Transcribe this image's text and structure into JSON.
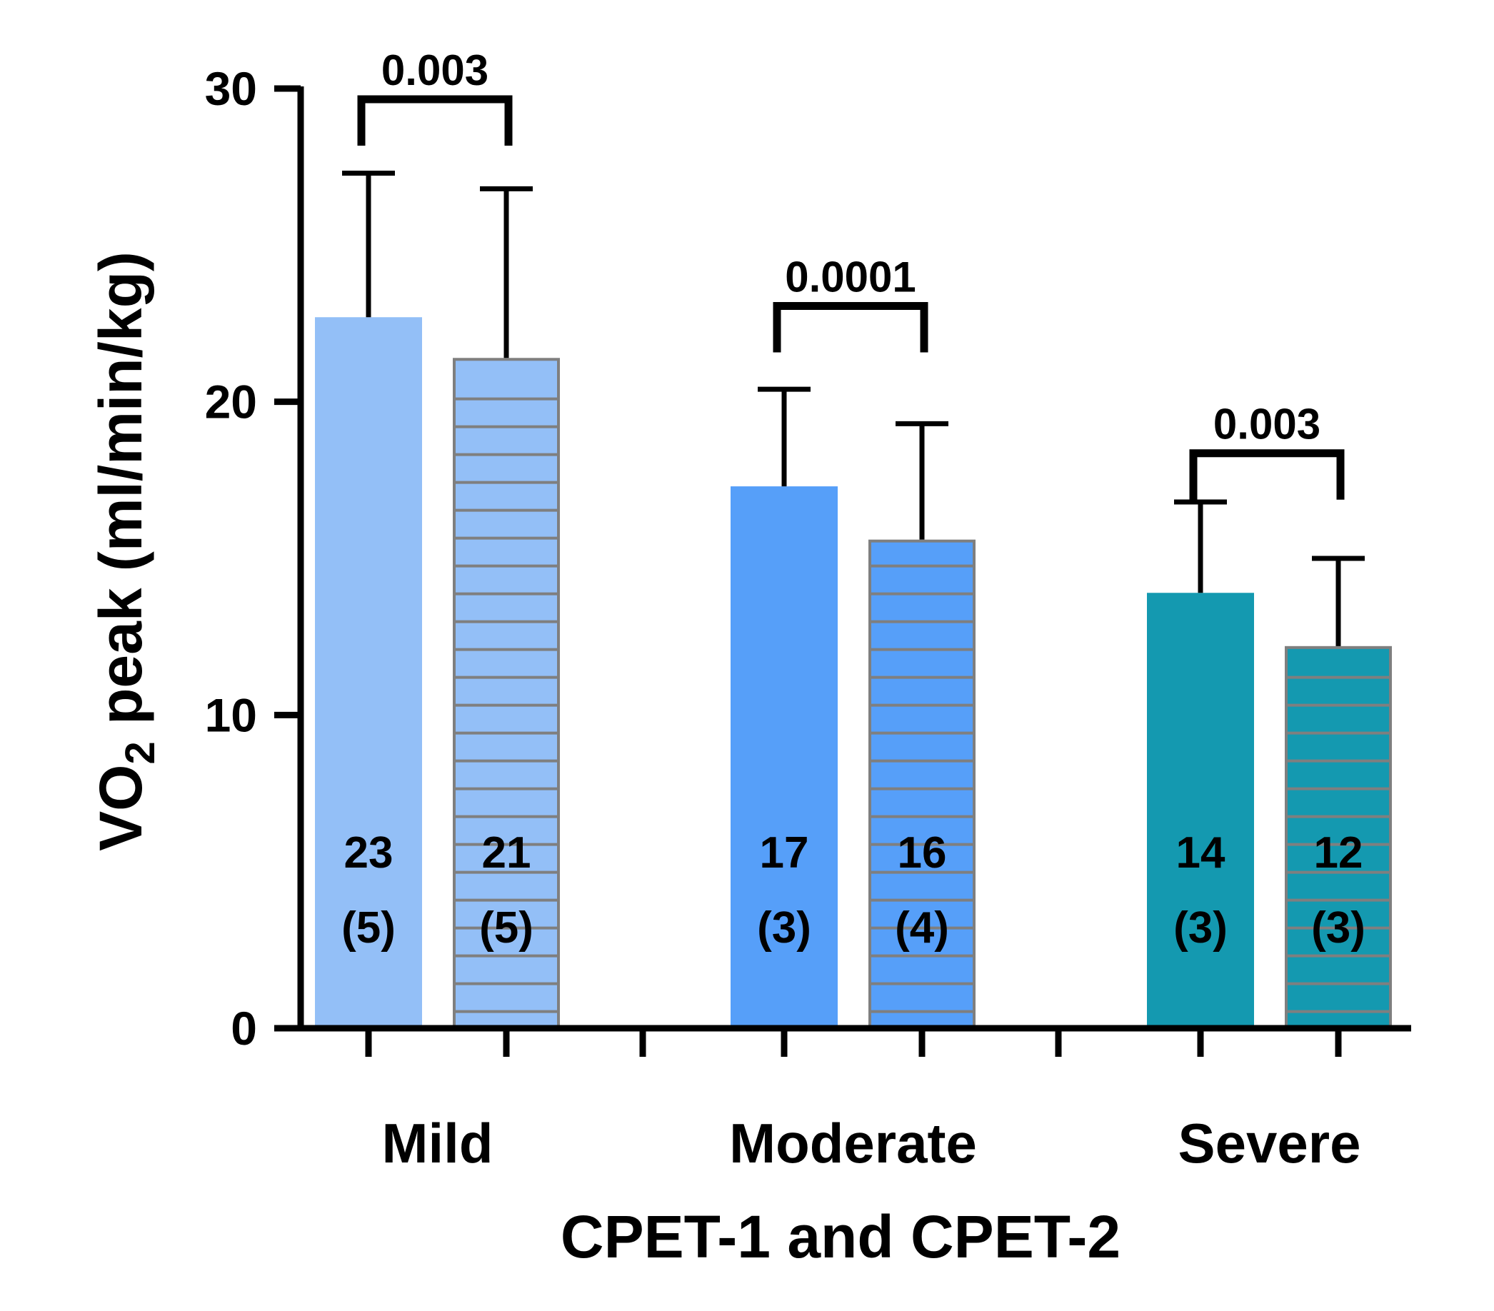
{
  "chart_data": {
    "type": "bar",
    "xlabel": "CPET-1 and CPET-2",
    "ylabel": {
      "main": "VO",
      "sub": "2",
      "rest": " peak (ml/min/kg)"
    },
    "ylim": [
      0,
      30
    ],
    "yticks": [
      "0",
      "10",
      "20",
      "30"
    ],
    "categories": [
      "Mild",
      "Moderate",
      "Severe"
    ],
    "series": [
      {
        "name": "CPET-1",
        "pattern": "solid",
        "values": [
          22.7,
          17.3,
          13.9
        ],
        "errors": [
          4.6,
          3.1,
          2.9
        ],
        "labels": [
          "23",
          "17",
          "14"
        ],
        "sd_labels": [
          "(5)",
          "(3)",
          "(3)"
        ]
      },
      {
        "name": "CPET-2",
        "pattern": "horizontal-stripes",
        "values": [
          21.4,
          15.6,
          12.2
        ],
        "errors": [
          5.4,
          3.7,
          2.8
        ],
        "labels": [
          "21",
          "16",
          "12"
        ],
        "sd_labels": [
          "(5)",
          "(4)",
          "(3)"
        ]
      }
    ],
    "bar_colors": [
      "#93bff7",
      "#569ff9",
      "#1499b0"
    ],
    "edge_color": "#7f7f7f",
    "significance": [
      {
        "category": "Mild",
        "label": "0.003",
        "level": 30.0
      },
      {
        "category": "Moderate",
        "label": "0.0001",
        "level": 23.4
      },
      {
        "category": "Severe",
        "label": "0.003",
        "level": 18.7
      }
    ]
  }
}
